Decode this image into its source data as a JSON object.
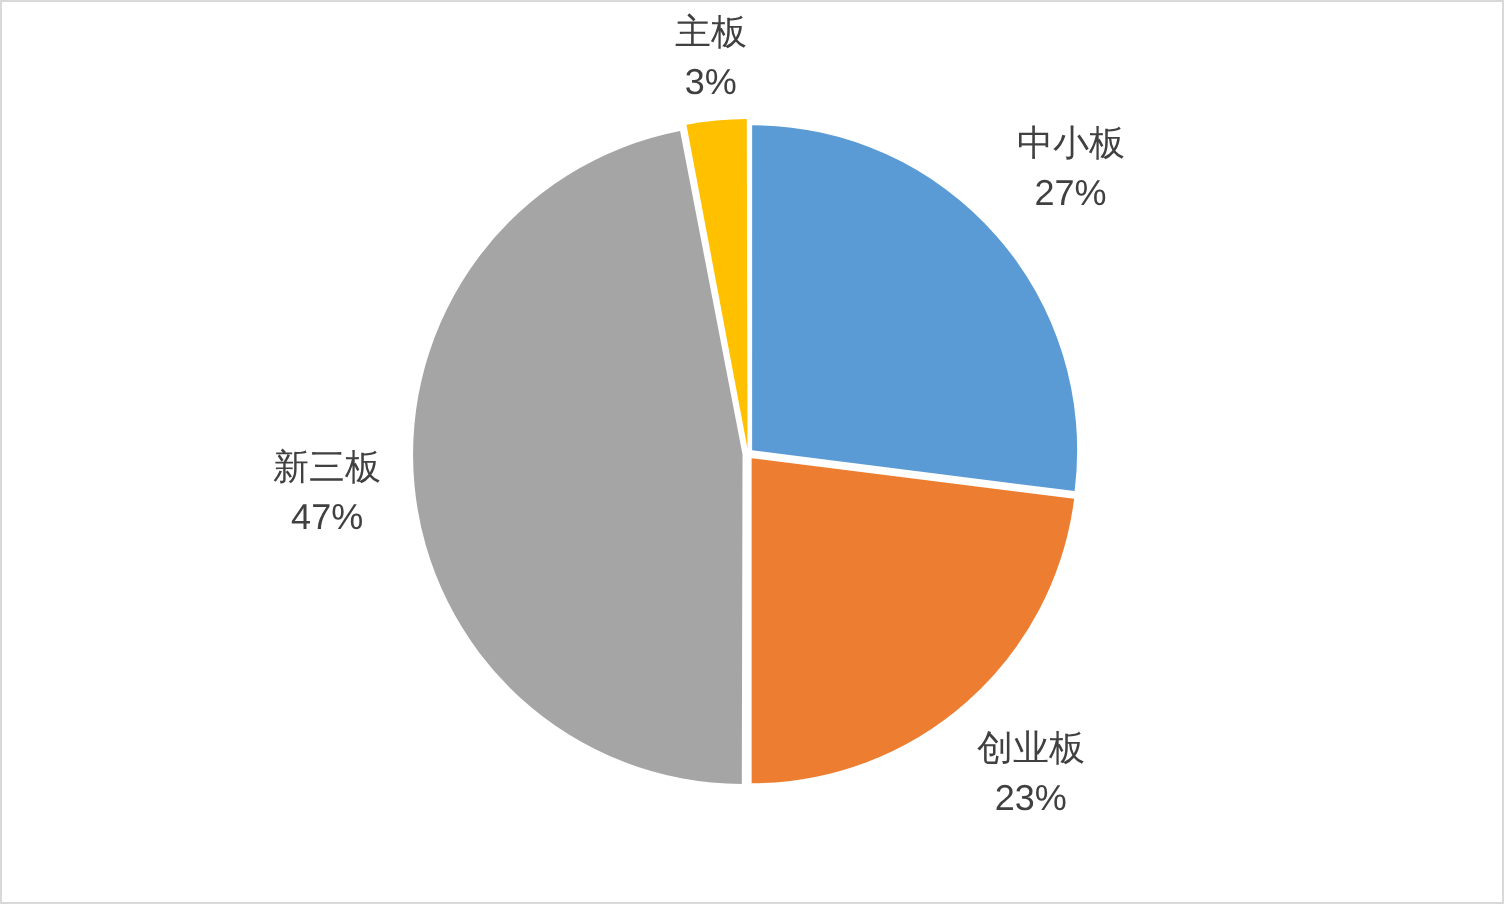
{
  "chart_data": {
    "type": "pie",
    "categories": [
      "中小板",
      "创业板",
      "新三板",
      "主板"
    ],
    "values": [
      27,
      23,
      47,
      3
    ],
    "colors": [
      "#5b9bd5",
      "#ed7d31",
      "#a5a5a5",
      "#ffc000"
    ],
    "value_labels": [
      "27%",
      "23%",
      "47%",
      "3%"
    ]
  }
}
